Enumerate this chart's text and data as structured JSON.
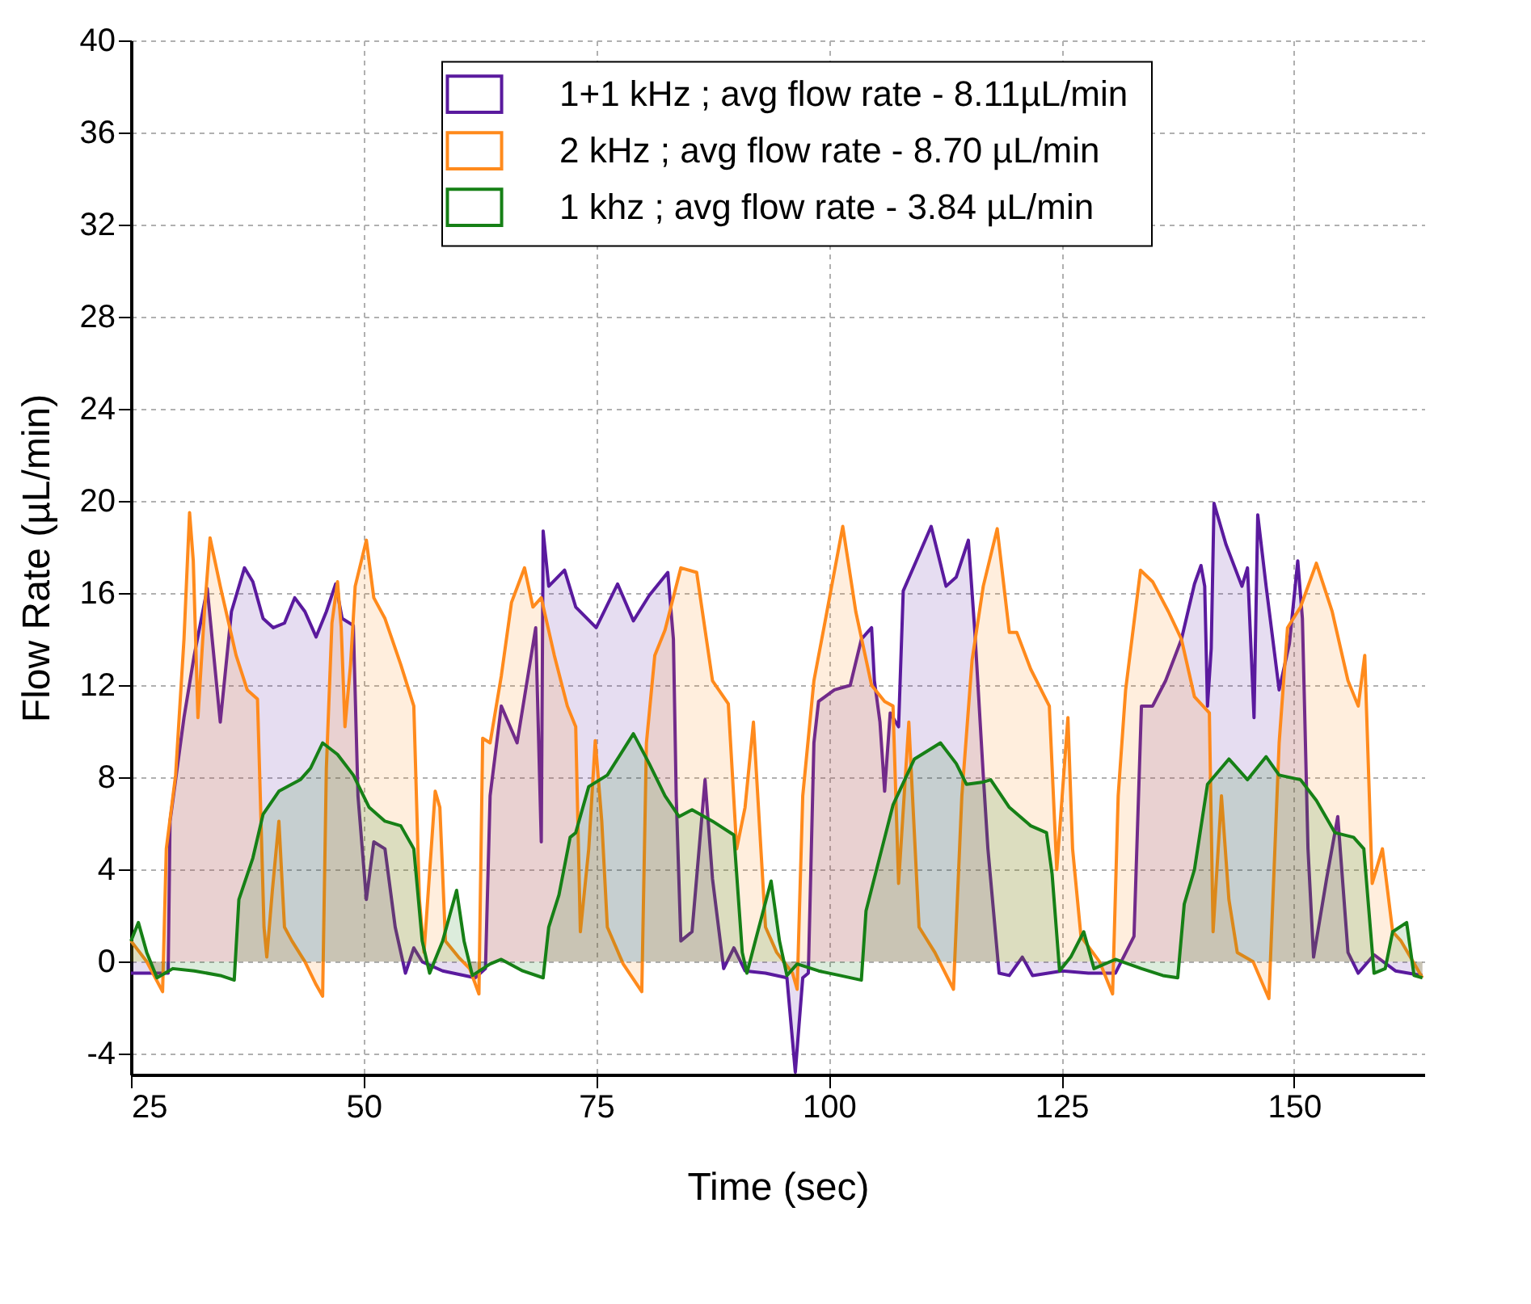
{
  "chart_data": {
    "type": "area",
    "xlabel": "Time (sec)",
    "ylabel": "Flow Rate (µL/min)",
    "xlim": [
      25,
      164
    ],
    "xticks": [
      25,
      50,
      75,
      100,
      125,
      150
    ],
    "ylim": [
      -4.9,
      40
    ],
    "yticks": [
      -4,
      0,
      4,
      8,
      12,
      16,
      20,
      24,
      28,
      32,
      36,
      40
    ],
    "grid": true,
    "legend": "top",
    "line_style": "solid",
    "series": [
      {
        "name": "1+1 kHz ;  avg flow rate - 8.11µL/min",
        "color": "#5a1a9e",
        "x": [
          25.0,
          29.0,
          29.2,
          30.7,
          31.8,
          33.2,
          34.6,
          35.8,
          37.2,
          38.1,
          39.2,
          40.3,
          41.5,
          42.6,
          43.7,
          44.9,
          46.0,
          47.0,
          47.7,
          48.9,
          49.4,
          50.3,
          51.1,
          52.3,
          53.4,
          54.5,
          55.4,
          56.3,
          58.5,
          62.0,
          63.1,
          63.6,
          64.8,
          66.5,
          68.5,
          69.1,
          69.3,
          69.9,
          71.6,
          72.8,
          75.0,
          77.3,
          79.0,
          80.7,
          82.7,
          83.3,
          83.6,
          84.1,
          85.3,
          86.7,
          87.5,
          88.7,
          89.8,
          91.0,
          93.2,
          95.5,
          96.4,
          97.2,
          97.8,
          98.4,
          98.9,
          100.6,
          102.3,
          103.5,
          104.6,
          104.9,
          105.5,
          106.0,
          106.6,
          107.5,
          108.0,
          109.4,
          111.0,
          112.6,
          113.7,
          115.0,
          115.7,
          116.6,
          117.1,
          118.3,
          119.4,
          120.8,
          121.9,
          125.1,
          127.9,
          130.8,
          132.8,
          133.6,
          134.8,
          136.2,
          137.9,
          139.3,
          140.0,
          140.4,
          140.7,
          141.1,
          141.4,
          142.7,
          144.4,
          145.0,
          145.7,
          146.1,
          147.0,
          148.4,
          149.5,
          150.4,
          150.9,
          151.5,
          152.1,
          153.5,
          154.7,
          155.8,
          156.9,
          158.6,
          160.9,
          163.8
        ],
        "values": [
          -0.5,
          -0.5,
          6.1,
          10.6,
          13.3,
          16.2,
          10.4,
          15.2,
          17.1,
          16.5,
          14.9,
          14.5,
          14.7,
          15.8,
          15.2,
          14.1,
          15.2,
          16.4,
          14.9,
          14.6,
          7.2,
          2.7,
          5.2,
          4.9,
          1.5,
          -0.5,
          0.6,
          0.0,
          -0.4,
          -0.7,
          -0.3,
          7.2,
          11.1,
          9.5,
          14.5,
          5.2,
          18.7,
          16.3,
          17.0,
          15.4,
          14.5,
          16.4,
          14.8,
          15.9,
          16.9,
          14.0,
          7.2,
          0.9,
          1.3,
          7.9,
          3.6,
          -0.3,
          0.6,
          -0.4,
          -0.5,
          -0.7,
          -4.8,
          -0.7,
          -0.5,
          9.5,
          11.3,
          11.8,
          12.0,
          14.0,
          14.5,
          12.2,
          10.4,
          7.4,
          10.8,
          10.2,
          16.1,
          17.4,
          18.9,
          16.3,
          16.7,
          18.3,
          14.3,
          8.1,
          4.9,
          -0.5,
          -0.6,
          0.2,
          -0.6,
          -0.4,
          -0.5,
          -0.5,
          1.1,
          11.1,
          11.1,
          12.2,
          14.0,
          16.4,
          17.2,
          16.3,
          11.1,
          13.6,
          19.9,
          18.1,
          16.3,
          17.1,
          10.6,
          19.4,
          16.3,
          11.8,
          13.8,
          17.4,
          14.9,
          4.9,
          0.2,
          3.6,
          6.3,
          0.4,
          -0.5,
          0.3,
          -0.4,
          -0.6
        ]
      },
      {
        "name": "2 kHz  ; avg flow rate - 8.70 µL/min",
        "color": "#ff8a1c",
        "x": [
          25.0,
          26.7,
          28.4,
          28.8,
          29.8,
          30.7,
          31.3,
          31.7,
          32.2,
          32.9,
          33.5,
          34.6,
          36.3,
          37.5,
          38.6,
          38.9,
          39.3,
          39.6,
          40.2,
          40.9,
          41.5,
          42.3,
          43.7,
          44.9,
          45.6,
          46.0,
          46.6,
          47.2,
          47.6,
          48.0,
          48.6,
          49.1,
          50.3,
          51.1,
          52.3,
          54.0,
          55.4,
          56.0,
          56.5,
          57.7,
          58.2,
          58.8,
          60.2,
          61.4,
          62.4,
          62.8,
          63.6,
          64.8,
          65.9,
          67.3,
          68.2,
          69.1,
          70.5,
          71.9,
          72.8,
          73.3,
          74.2,
          74.9,
          75.6,
          76.2,
          77.9,
          79.9,
          80.4,
          81.3,
          82.4,
          84.1,
          85.8,
          87.5,
          89.2,
          90.1,
          91.0,
          91.9,
          92.7,
          93.2,
          94.4,
          96.1,
          96.6,
          97.2,
          98.4,
          99.8,
          101.5,
          102.9,
          104.6,
          106.0,
          106.9,
          107.5,
          108.6,
          109.7,
          111.4,
          113.4,
          114.3,
          115.4,
          116.6,
          118.1,
          119.4,
          120.2,
          121.7,
          123.7,
          124.5,
          125.7,
          126.2,
          127.1,
          129.1,
          130.5,
          131.1,
          131.9,
          133.5,
          134.8,
          136.5,
          137.9,
          139.3,
          140.9,
          141.3,
          142.2,
          143.0,
          143.9,
          145.6,
          147.3,
          148.4,
          149.3,
          150.7,
          152.4,
          154.1,
          155.8,
          156.9,
          157.6,
          158.4,
          159.5,
          160.6,
          161.5,
          163.8
        ],
        "values": [
          0.9,
          0.0,
          -1.3,
          4.9,
          8.1,
          14.0,
          19.5,
          17.4,
          10.6,
          15.2,
          18.4,
          16.3,
          13.3,
          11.8,
          11.4,
          7.2,
          1.5,
          0.2,
          3.1,
          6.1,
          1.5,
          0.9,
          0.0,
          -1.0,
          -1.5,
          8.4,
          14.7,
          16.5,
          14.5,
          10.2,
          12.9,
          16.3,
          18.3,
          15.8,
          14.9,
          12.9,
          11.1,
          2.7,
          0.4,
          7.4,
          6.7,
          0.9,
          0.2,
          -0.3,
          -1.4,
          9.7,
          9.5,
          12.4,
          15.6,
          17.1,
          15.4,
          15.8,
          13.3,
          11.1,
          10.2,
          1.3,
          4.9,
          9.6,
          6.1,
          1.5,
          -0.1,
          -1.3,
          9.5,
          13.3,
          14.4,
          17.1,
          16.9,
          12.2,
          11.2,
          4.9,
          6.7,
          10.4,
          4.9,
          1.5,
          0.4,
          -0.5,
          -1.2,
          7.2,
          12.2,
          15.2,
          18.9,
          15.2,
          12.0,
          11.3,
          11.1,
          3.4,
          10.4,
          1.5,
          0.4,
          -1.2,
          7.2,
          13.1,
          16.3,
          18.8,
          14.3,
          14.3,
          12.7,
          11.1,
          4.0,
          10.6,
          4.9,
          1.1,
          0.0,
          -1.4,
          7.2,
          11.8,
          17.0,
          16.5,
          15.2,
          14.0,
          11.5,
          10.8,
          1.3,
          7.2,
          2.7,
          0.4,
          0.0,
          -1.6,
          9.5,
          14.5,
          15.4,
          17.3,
          15.2,
          12.2,
          11.1,
          13.3,
          3.4,
          4.9,
          1.3,
          0.9,
          -0.7
        ]
      },
      {
        "name": "1 khz  ; avg flow rate - 3.84 µL/min",
        "color": "#168016",
        "x": [
          25.0,
          25.8,
          26.7,
          27.8,
          29.5,
          31.8,
          34.6,
          36.1,
          36.6,
          38.1,
          39.2,
          40.9,
          43.2,
          44.3,
          45.6,
          47.2,
          48.9,
          50.6,
          52.3,
          54.0,
          55.4,
          56.3,
          57.1,
          58.5,
          60.0,
          60.8,
          61.7,
          63.6,
          64.8,
          67.1,
          69.3,
          69.9,
          71.0,
          72.2,
          72.8,
          74.2,
          76.2,
          79.0,
          80.7,
          82.4,
          83.9,
          85.3,
          87.5,
          89.8,
          90.7,
          91.2,
          92.1,
          93.8,
          94.7,
          95.5,
          96.6,
          98.9,
          101.2,
          103.5,
          104.0,
          105.7,
          106.9,
          109.2,
          112.0,
          113.7,
          114.8,
          116.6,
          117.4,
          119.4,
          121.7,
          123.4,
          124.0,
          124.8,
          126.0,
          127.4,
          128.5,
          130.8,
          133.6,
          135.9,
          137.5,
          138.2,
          139.3,
          140.7,
          143.0,
          145.0,
          147.0,
          148.4,
          150.7,
          152.4,
          154.4,
          156.4,
          157.5,
          158.6,
          159.8,
          160.6,
          162.1,
          162.9,
          163.8
        ],
        "values": [
          0.9,
          1.7,
          0.4,
          -0.7,
          -0.3,
          -0.4,
          -0.6,
          -0.8,
          2.7,
          4.5,
          6.4,
          7.4,
          7.9,
          8.4,
          9.5,
          9.0,
          8.1,
          6.7,
          6.1,
          5.9,
          4.9,
          0.9,
          -0.5,
          0.9,
          3.1,
          0.9,
          -0.6,
          -0.1,
          0.1,
          -0.4,
          -0.7,
          1.5,
          2.9,
          5.4,
          5.6,
          7.6,
          8.1,
          9.9,
          8.6,
          7.2,
          6.3,
          6.6,
          6.1,
          5.5,
          0.4,
          -0.5,
          0.9,
          3.5,
          0.9,
          -0.6,
          -0.1,
          -0.4,
          -0.6,
          -0.8,
          2.2,
          4.9,
          6.8,
          8.8,
          9.5,
          8.6,
          7.7,
          7.8,
          7.9,
          6.7,
          5.9,
          5.6,
          3.8,
          -0.4,
          0.2,
          1.3,
          -0.3,
          0.1,
          -0.3,
          -0.6,
          -0.7,
          2.5,
          4.0,
          7.7,
          8.8,
          7.9,
          8.9,
          8.1,
          7.9,
          7.0,
          5.6,
          5.4,
          4.9,
          -0.5,
          -0.3,
          1.3,
          1.7,
          -0.6,
          -0.7
        ]
      }
    ]
  }
}
